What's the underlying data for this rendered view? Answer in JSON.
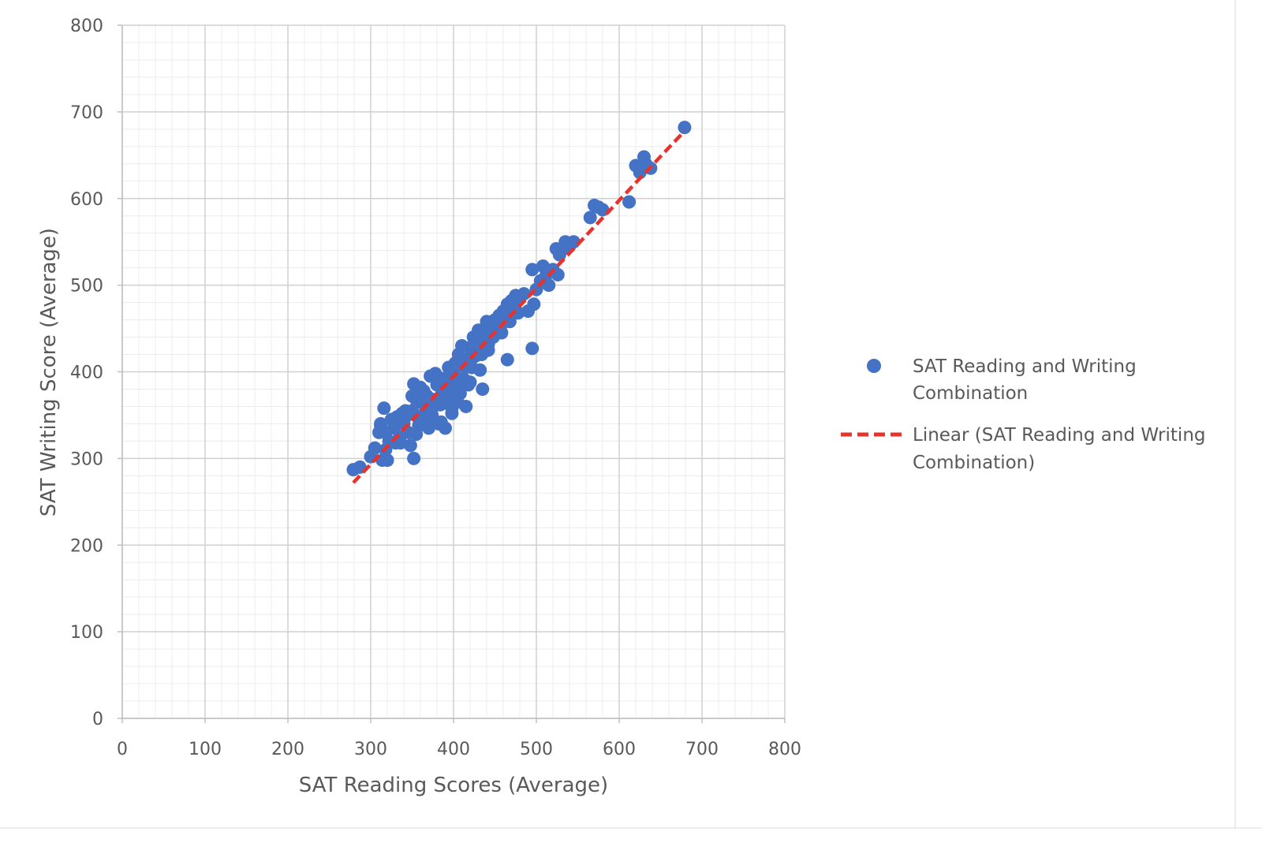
{
  "chart_data": {
    "type": "scatter",
    "xlabel": "SAT Reading Scores (Average)",
    "ylabel": "SAT Writing Score (Average)",
    "xlim": [
      0,
      800
    ],
    "ylim": [
      0,
      800
    ],
    "x_ticks": [
      0,
      100,
      200,
      300,
      400,
      500,
      600,
      700,
      800
    ],
    "y_ticks": [
      0,
      100,
      200,
      300,
      400,
      500,
      600,
      700,
      800
    ],
    "x_tick_labels": [
      "0",
      "100",
      "200",
      "300",
      "400",
      "500",
      "600",
      "700",
      "800"
    ],
    "y_tick_labels": [
      "0",
      "100",
      "200",
      "300",
      "400",
      "500",
      "600",
      "700",
      "800"
    ],
    "grid": "major and minor",
    "legend_position": "right",
    "series": [
      {
        "name": "SAT Reading and Writing Combination",
        "kind": "scatter",
        "color": "#4472C4",
        "x": [
          279,
          287,
          300,
          305,
          310,
          312,
          314,
          316,
          318,
          320,
          322,
          325,
          328,
          330,
          332,
          335,
          338,
          340,
          342,
          345,
          348,
          350,
          352,
          354,
          356,
          358,
          360,
          362,
          364,
          366,
          368,
          370,
          372,
          374,
          376,
          378,
          380,
          382,
          384,
          386,
          388,
          390,
          392,
          394,
          396,
          398,
          400,
          402,
          404,
          406,
          408,
          410,
          412,
          414,
          416,
          418,
          420,
          422,
          424,
          426,
          428,
          430,
          432,
          434,
          436,
          438,
          440,
          442,
          445,
          448,
          450,
          452,
          455,
          458,
          460,
          462,
          465,
          468,
          470,
          472,
          475,
          478,
          480,
          485,
          490,
          495,
          497,
          500,
          505,
          508,
          512,
          515,
          520,
          524,
          526,
          528,
          530,
          535,
          540,
          545,
          565,
          570,
          575,
          580,
          612,
          620,
          625,
          630,
          632,
          638,
          679,
          352,
          320,
          435,
          465,
          495,
          312,
          355,
          375,
          390,
          405,
          350,
          342,
          365,
          395,
          415,
          385,
          372,
          398,
          408,
          430,
          336,
          318,
          362,
          380,
          392,
          420,
          442,
          458
        ],
        "y": [
          287,
          290,
          302,
          312,
          330,
          340,
          298,
          358,
          310,
          298,
          320,
          345,
          335,
          318,
          348,
          325,
          352,
          340,
          355,
          330,
          315,
          372,
          386,
          350,
          365,
          338,
          382,
          345,
          378,
          360,
          372,
          335,
          395,
          350,
          368,
          398,
          385,
          340,
          362,
          375,
          392,
          335,
          365,
          405,
          380,
          358,
          398,
          410,
          372,
          420,
          385,
          430,
          392,
          405,
          415,
          385,
          428,
          405,
          440,
          418,
          435,
          448,
          402,
          420,
          438,
          445,
          458,
          425,
          452,
          440,
          460,
          448,
          465,
          455,
          470,
          465,
          478,
          458,
          482,
          475,
          488,
          468,
          485,
          490,
          470,
          518,
          478,
          495,
          505,
          522,
          512,
          500,
          518,
          542,
          512,
          535,
          540,
          550,
          545,
          550,
          578,
          592,
          590,
          587,
          596,
          638,
          630,
          648,
          640,
          635,
          682,
          300,
          298,
          380,
          414,
          427,
          338,
          328,
          345,
          378,
          365,
          355,
          348,
          372,
          390,
          360,
          342,
          368,
          352,
          375,
          430,
          318,
          330,
          348,
          362,
          378,
          388,
          432,
          445
        ]
      },
      {
        "name": "Linear (SAT Reading and Writing Combination)",
        "kind": "trendline",
        "color": "#E8322C",
        "x": [
          279,
          679
        ],
        "y": [
          272,
          678
        ]
      }
    ],
    "legend": [
      {
        "lines": [
          "SAT Reading and Writing",
          "Combination"
        ]
      },
      {
        "lines": [
          "Linear (SAT Reading and Writing",
          "Combination)"
        ]
      }
    ]
  }
}
